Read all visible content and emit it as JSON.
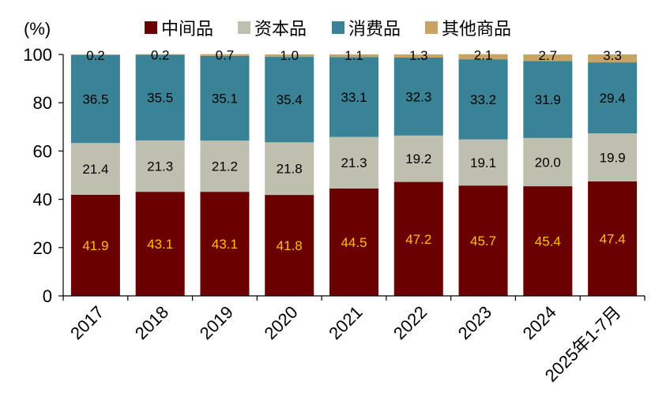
{
  "chart_data": {
    "type": "bar",
    "stacked": true,
    "ylabel": "(%)",
    "ylim": [
      0,
      100
    ],
    "yticks": [
      0,
      20,
      40,
      60,
      80,
      100
    ],
    "categories": [
      "2017",
      "2018",
      "2019",
      "2020",
      "2021",
      "2022",
      "2023",
      "2024",
      "2025年1-7月"
    ],
    "series": [
      {
        "name": "中间品",
        "color": "#6b0000",
        "label_color": "#ffc000",
        "values": [
          41.9,
          43.1,
          43.1,
          41.8,
          44.5,
          47.2,
          45.7,
          45.4,
          47.4
        ]
      },
      {
        "name": "资本品",
        "color": "#bfbfb0",
        "label_color": "#000000",
        "values": [
          21.4,
          21.3,
          21.2,
          21.8,
          21.3,
          19.2,
          19.1,
          20.0,
          19.9
        ]
      },
      {
        "name": "消费品",
        "color": "#3a8296",
        "label_color": "#000000",
        "values": [
          36.5,
          35.5,
          35.1,
          35.4,
          33.1,
          32.3,
          33.2,
          31.9,
          29.4
        ]
      },
      {
        "name": "其他商品",
        "color": "#c8a464",
        "label_color": "#000000",
        "values": [
          0.2,
          0.2,
          0.7,
          1.0,
          1.1,
          1.3,
          2.1,
          2.7,
          3.3
        ]
      }
    ],
    "legend_position": "top",
    "grid": false
  }
}
